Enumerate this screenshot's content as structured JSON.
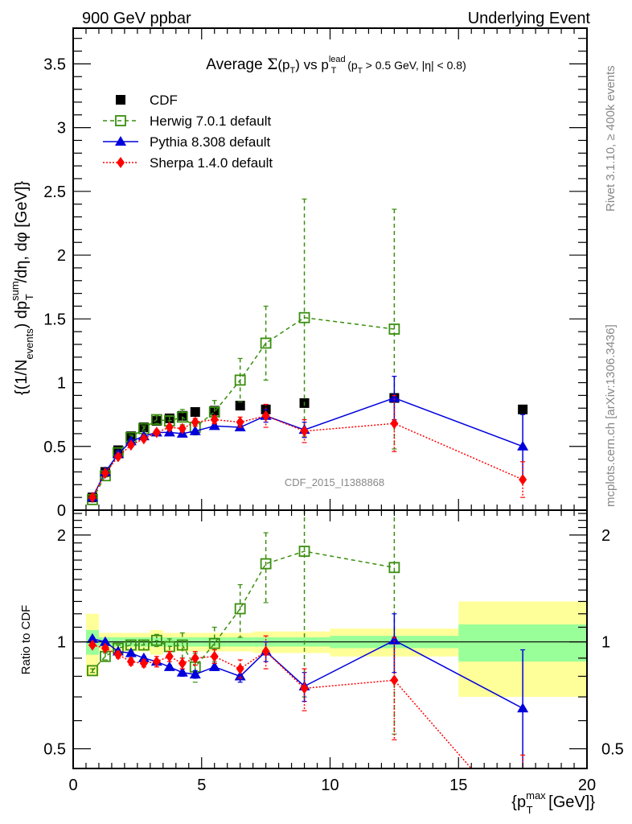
{
  "header": {
    "left": "900 GeV ppbar",
    "right": "Underlying Event"
  },
  "side_labels": {
    "rivet": "Rivet 3.1.10, ≥ 400k events",
    "mcplots": "mcplots.cern.ch [arXiv:1306.3436]"
  },
  "watermark": "CDF_2015_I1388868",
  "chart_data": [
    {
      "type": "line",
      "panel": "main",
      "title_parts": {
        "prefix": "Average ",
        "sigma": "Σ",
        "pt1": "(p",
        "pt1_sub": "T",
        "pt1_close": ")",
        "vs": " vs p",
        "lead_sup": "lead",
        "lead_sub": "T",
        "cut": " (p",
        "cut_sub": "T",
        "cut_rest": " > 0.5 GeV, |η| < 0.8)"
      },
      "ylabel": "{(1/N_events) dp_T^sum/dη, dφ [GeV]}",
      "ylabel_parts": {
        "a": "{(1/N",
        "a_sub": "events",
        "b": ") dp",
        "b_sup": "sum",
        "b_sub": "T",
        "c": "/dη, dφ [GeV]}"
      },
      "xlim": [
        0,
        20
      ],
      "ylim": [
        0,
        3.78
      ],
      "yticks": [
        0,
        0.5,
        1,
        1.5,
        2,
        2.5,
        3,
        3.5
      ],
      "ytick_labels": [
        "0",
        "0.5",
        "1",
        "1.5",
        "2",
        "2.5",
        "3",
        "3.5"
      ],
      "legend_position": "top-left",
      "x": [
        0.75,
        1.25,
        1.75,
        2.25,
        2.75,
        3.25,
        3.75,
        4.25,
        4.75,
        5.5,
        6.5,
        7.5,
        9,
        12.5,
        17.5
      ],
      "series": [
        {
          "name": "CDF",
          "color": "#000000",
          "marker": "square",
          "line": "none",
          "values": [
            0.1,
            0.3,
            0.47,
            0.58,
            0.65,
            0.7,
            0.72,
            0.74,
            0.77,
            0.78,
            0.82,
            0.79,
            0.84,
            0.88,
            0.79
          ],
          "band_inner": [
            0.1,
            0.04,
            0.04,
            0.03,
            0.03,
            0.03,
            0.03,
            0.03,
            0.03,
            0.03,
            0.03,
            0.04,
            0.05,
            0.06,
            0.15
          ],
          "band_outer": [
            0.2,
            0.08,
            0.07,
            0.06,
            0.06,
            0.06,
            0.06,
            0.06,
            0.06,
            0.06,
            0.06,
            0.06,
            0.07,
            0.08,
            0.3
          ]
        },
        {
          "name": "Herwig 7.0.1 default",
          "color": "#3a8e0e",
          "marker": "open-square",
          "line": "dashed",
          "values": [
            0.083,
            0.27,
            0.45,
            0.57,
            0.64,
            0.71,
            0.7,
            0.73,
            0.65,
            0.77,
            1.02,
            1.31,
            1.51,
            1.42,
            null
          ],
          "errors": [
            0.01,
            0.01,
            0.01,
            0.02,
            0.02,
            0.03,
            0.04,
            0.06,
            0.06,
            0.09,
            0.17,
            0.29,
            0.93,
            0.94,
            null
          ]
        },
        {
          "name": "Pythia 8.308 default",
          "color": "#0000dd",
          "marker": "triangle",
          "line": "solid",
          "values": [
            0.1,
            0.3,
            0.44,
            0.54,
            0.58,
            0.61,
            0.61,
            0.6,
            0.62,
            0.66,
            0.65,
            0.74,
            0.63,
            0.88,
            0.5
          ],
          "errors": [
            0.005,
            0.005,
            0.01,
            0.01,
            0.01,
            0.01,
            0.01,
            0.01,
            0.01,
            0.02,
            0.02,
            0.05,
            0.06,
            0.17,
            0.25
          ]
        },
        {
          "name": "Sherpa 1.4.0 default",
          "color": "#ff0000",
          "marker": "diamond",
          "line": "dotted",
          "values": [
            0.1,
            0.29,
            0.42,
            0.51,
            0.56,
            0.61,
            0.65,
            0.64,
            0.69,
            0.71,
            0.69,
            0.74,
            0.62,
            0.68,
            0.24
          ],
          "errors": [
            0.005,
            0.005,
            0.01,
            0.01,
            0.01,
            0.02,
            0.02,
            0.02,
            0.03,
            0.03,
            0.04,
            0.09,
            0.09,
            0.22,
            0.14
          ]
        }
      ]
    },
    {
      "type": "line",
      "panel": "ratio",
      "ylabel": "Ratio to CDF",
      "xlabel_parts": {
        "a": "{p",
        "a_sup": "max",
        "a_sub": "T",
        "b": " [GeV]}"
      },
      "xlim": [
        0,
        20
      ],
      "ylim": [
        0.44,
        2.35
      ],
      "yscale": "log",
      "xticks": [
        0,
        5,
        10,
        15,
        20
      ],
      "xtick_labels": [
        "0",
        "5",
        "10",
        "15",
        "20"
      ],
      "yticks": [
        0.5,
        1,
        2
      ],
      "ytick_labels": [
        "0.5",
        "1",
        "2"
      ],
      "bins": [
        [
          0.5,
          1.0
        ],
        [
          1.0,
          1.5
        ],
        [
          1.5,
          2.0
        ],
        [
          2.0,
          2.5
        ],
        [
          2.5,
          3.0
        ],
        [
          3.0,
          3.5
        ],
        [
          3.5,
          4.0
        ],
        [
          4.0,
          4.5
        ],
        [
          4.5,
          5.0
        ],
        [
          5.0,
          6.0
        ],
        [
          6.0,
          7.0
        ],
        [
          7.0,
          8.0
        ],
        [
          8.0,
          10.0
        ],
        [
          10.0,
          15.0
        ],
        [
          15.0,
          20.0
        ]
      ],
      "band_inner": [
        0.08,
        0.03,
        0.03,
        0.03,
        0.03,
        0.03,
        0.03,
        0.03,
        0.03,
        0.03,
        0.03,
        0.03,
        0.03,
        0.04,
        0.12
      ],
      "band_outer": [
        0.2,
        0.06,
        0.06,
        0.06,
        0.06,
        0.08,
        0.06,
        0.06,
        0.06,
        0.06,
        0.06,
        0.07,
        0.07,
        0.09,
        0.3
      ],
      "x": [
        0.75,
        1.25,
        1.75,
        2.25,
        2.75,
        3.25,
        3.75,
        4.25,
        4.75,
        5.5,
        6.5,
        7.5,
        9,
        12.5,
        17.5
      ],
      "series": [
        {
          "name": "Herwig 7.0.1 default",
          "values": [
            0.83,
            0.91,
            0.96,
            0.98,
            0.98,
            1.01,
            0.97,
            0.98,
            0.85,
            0.99,
            1.24,
            1.66,
            1.8,
            1.62,
            null
          ],
          "errors": [
            0.01,
            0.02,
            0.02,
            0.03,
            0.03,
            0.04,
            0.05,
            0.08,
            0.08,
            0.11,
            0.21,
            0.37,
            1.1,
            1.07,
            null
          ]
        },
        {
          "name": "Pythia 8.308 default",
          "values": [
            1.02,
            1.0,
            0.94,
            0.93,
            0.9,
            0.88,
            0.85,
            0.82,
            0.81,
            0.85,
            0.8,
            0.94,
            0.75,
            1.01,
            0.65
          ],
          "errors": [
            0.01,
            0.01,
            0.01,
            0.01,
            0.01,
            0.01,
            0.01,
            0.02,
            0.02,
            0.02,
            0.03,
            0.06,
            0.07,
            0.19,
            0.3
          ]
        },
        {
          "name": "Sherpa 1.4.0 default",
          "values": [
            0.98,
            0.96,
            0.92,
            0.88,
            0.87,
            0.88,
            0.91,
            0.87,
            0.9,
            0.91,
            0.84,
            0.94,
            0.74,
            0.78,
            0.3
          ],
          "errors": [
            0.01,
            0.01,
            0.02,
            0.02,
            0.02,
            0.03,
            0.03,
            0.03,
            0.04,
            0.04,
            0.05,
            0.1,
            0.1,
            0.25,
            0.18
          ]
        }
      ]
    }
  ]
}
